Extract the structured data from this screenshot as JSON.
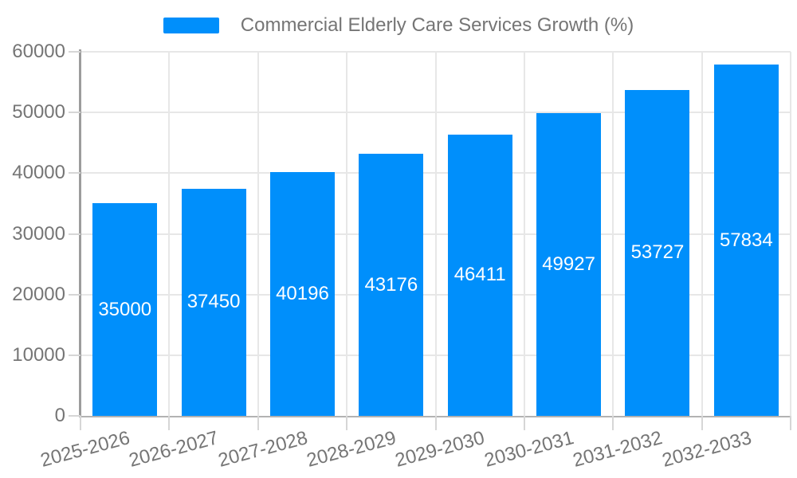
{
  "chart_data": {
    "type": "bar",
    "title": "Commercial Elderly Care Services Growth (%)",
    "legend_position": "top",
    "categories": [
      "2025-2026",
      "2026-2027",
      "2027-2028",
      "2028-2029",
      "2029-2030",
      "2030-2031",
      "2031-2032",
      "2032-2033"
    ],
    "series": [
      {
        "name": "Commercial Elderly Care Services Growth (%)",
        "values": [
          35000,
          37450,
          40196,
          43176,
          46411,
          49927,
          53727,
          57834
        ]
      }
    ],
    "data_labels": [
      "35000",
      "37450",
      "40196",
      "43176",
      "46411",
      "49927",
      "53727",
      "57834"
    ],
    "xlabel": "",
    "ylabel": "",
    "ylim": [
      0,
      60000
    ],
    "yticks": [
      0,
      10000,
      20000,
      30000,
      40000,
      50000,
      60000
    ],
    "x_label_rotation_deg": -15,
    "grid": {
      "horizontal": true,
      "vertical": true
    },
    "colors": {
      "bar": "#008FFB",
      "data_label": "#FFFFFF",
      "axis_text": "#757575",
      "gridline": "#E7E7E7",
      "tick": "#D6D6D6",
      "axis_line_y": "#9C9C9C",
      "axis_line_x": "#B2B2B2"
    }
  }
}
